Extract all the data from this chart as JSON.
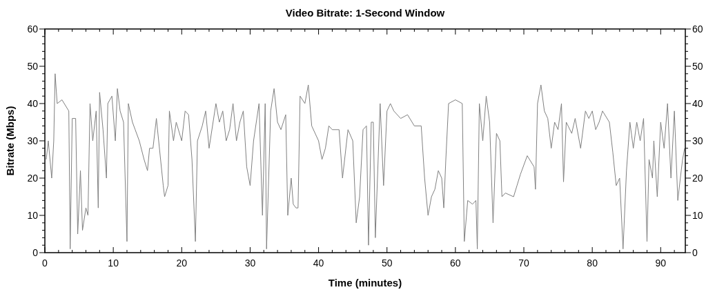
{
  "chart_data": {
    "type": "line",
    "title": "Video Bitrate: 1-Second Window",
    "xlabel": "Time (minutes)",
    "ylabel": "Bitrate (Mbps)",
    "xlim": [
      0,
      93.6
    ],
    "ylim": [
      0,
      60
    ],
    "y2lim": [
      0,
      60
    ],
    "grid": false,
    "marker": "none",
    "line_style": "solid",
    "xticks": [
      0,
      {
        "value": 2,
        "label": null
      },
      {
        "value": 4,
        "label": null
      },
      {
        "value": 6,
        "label": null
      },
      {
        "value": 8,
        "label": null
      },
      10,
      {
        "value": 12,
        "label": null
      },
      {
        "value": 14,
        "label": null
      },
      {
        "value": 16,
        "label": null
      },
      {
        "value": 18,
        "label": null
      },
      20,
      {
        "value": 22,
        "label": null
      },
      {
        "value": 24,
        "label": null
      },
      {
        "value": 26,
        "label": null
      },
      {
        "value": 28,
        "label": null
      },
      30,
      {
        "value": 32,
        "label": null
      },
      {
        "value": 34,
        "label": null
      },
      {
        "value": 36,
        "label": null
      },
      {
        "value": 38,
        "label": null
      },
      40,
      {
        "value": 42,
        "label": null
      },
      {
        "value": 44,
        "label": null
      },
      {
        "value": 46,
        "label": null
      },
      {
        "value": 48,
        "label": null
      },
      50,
      {
        "value": 52,
        "label": null
      },
      {
        "value": 54,
        "label": null
      },
      {
        "value": 56,
        "label": null
      },
      {
        "value": 58,
        "label": null
      },
      60,
      {
        "value": 62,
        "label": null
      },
      {
        "value": 64,
        "label": null
      },
      {
        "value": 66,
        "label": null
      },
      {
        "value": 68,
        "label": null
      },
      70,
      {
        "value": 72,
        "label": null
      },
      {
        "value": 74,
        "label": null
      },
      {
        "value": 76,
        "label": null
      },
      {
        "value": 78,
        "label": null
      },
      80,
      {
        "value": 82,
        "label": null
      },
      {
        "value": 84,
        "label": null
      },
      {
        "value": 86,
        "label": null
      },
      {
        "value": 88,
        "label": null
      },
      90,
      {
        "value": 92,
        "label": null
      }
    ],
    "yticks": [
      0,
      {
        "value": 2,
        "label": null
      },
      {
        "value": 4,
        "label": null
      },
      {
        "value": 6,
        "label": null
      },
      {
        "value": 8,
        "label": null
      },
      10,
      {
        "value": 12,
        "label": null
      },
      {
        "value": 14,
        "label": null
      },
      {
        "value": 16,
        "label": null
      },
      {
        "value": 18,
        "label": null
      },
      20,
      {
        "value": 22,
        "label": null
      },
      {
        "value": 24,
        "label": null
      },
      {
        "value": 26,
        "label": null
      },
      {
        "value": 28,
        "label": null
      },
      30,
      {
        "value": 32,
        "label": null
      },
      {
        "value": 34,
        "label": null
      },
      {
        "value": 36,
        "label": null
      },
      {
        "value": 38,
        "label": null
      },
      40,
      {
        "value": 42,
        "label": null
      },
      {
        "value": 44,
        "label": null
      },
      {
        "value": 46,
        "label": null
      },
      {
        "value": 48,
        "label": null
      },
      50,
      {
        "value": 52,
        "label": null
      },
      {
        "value": 54,
        "label": null
      },
      {
        "value": 56,
        "label": null
      },
      {
        "value": 58,
        "label": null
      },
      60
    ],
    "y2ticks": [
      0,
      {
        "value": 2,
        "label": null
      },
      {
        "value": 4,
        "label": null
      },
      {
        "value": 6,
        "label": null
      },
      {
        "value": 8,
        "label": null
      },
      10,
      {
        "value": 12,
        "label": null
      },
      {
        "value": 14,
        "label": null
      },
      {
        "value": 16,
        "label": null
      },
      {
        "value": 18,
        "label": null
      },
      20,
      {
        "value": 22,
        "label": null
      },
      {
        "value": 24,
        "label": null
      },
      {
        "value": 26,
        "label": null
      },
      {
        "value": 28,
        "label": null
      },
      30,
      {
        "value": 32,
        "label": null
      },
      {
        "value": 34,
        "label": null
      },
      {
        "value": 36,
        "label": null
      },
      {
        "value": 38,
        "label": null
      },
      40,
      {
        "value": 42,
        "label": null
      },
      {
        "value": 44,
        "label": null
      },
      {
        "value": 46,
        "label": null
      },
      {
        "value": 48,
        "label": null
      },
      50,
      {
        "value": 52,
        "label": null
      },
      {
        "value": 54,
        "label": null
      },
      {
        "value": 56,
        "label": null
      },
      {
        "value": 58,
        "label": null
      },
      60
    ],
    "series": [
      {
        "color": "#808080",
        "x": [
          0.2,
          0.5,
          1,
          1.3,
          1.5,
          1.8,
          2.5,
          3.5,
          3.7,
          4,
          4.5,
          4.8,
          5.2,
          5.5,
          6,
          6.3,
          6.6,
          7,
          7.5,
          7.8,
          8,
          8.5,
          9,
          9.2,
          9.8,
          10.3,
          10.6,
          11,
          11.5,
          12,
          12.2,
          12.8,
          13.2,
          13.8,
          14.5,
          15,
          15.3,
          15.8,
          16.3,
          17.3,
          17.5,
          18,
          18.2,
          18.8,
          19.2,
          20,
          20.5,
          21,
          21.5,
          22,
          22.3,
          23,
          23.5,
          24,
          25,
          25.5,
          26,
          26.5,
          27,
          27.5,
          28,
          28.5,
          29,
          29.5,
          30,
          30.5,
          31.3,
          31.8,
          32.2,
          32.4,
          33,
          33.5,
          34,
          34.5,
          35.2,
          35.5,
          36,
          36.3,
          36.7,
          37,
          37.3,
          38,
          38.5,
          39,
          40,
          40.5,
          41,
          41.5,
          42,
          43,
          43.5,
          44.3,
          45,
          45.5,
          46,
          46.5,
          47,
          47.3,
          47.7,
          48,
          48.3,
          49,
          49.5,
          50,
          50.5,
          51,
          52,
          53,
          54,
          55,
          55.5,
          56,
          56.5,
          57,
          57.5,
          58,
          58.3,
          58.6,
          59,
          60,
          61,
          61.3,
          61.8,
          62.5,
          63,
          63.2,
          63.5,
          64,
          64.5,
          65,
          65.5,
          66,
          66.5,
          66.8,
          67.3,
          68.5,
          69,
          69.5,
          70.5,
          71.5,
          71.7,
          72,
          72.5,
          73,
          73.5,
          74,
          74.5,
          75,
          75.5,
          75.8,
          76.2,
          77,
          77.5,
          78.3,
          79,
          79.5,
          80,
          80.5,
          81,
          81.5,
          82.5,
          83,
          83.5,
          84,
          84.5,
          85,
          85.5,
          86,
          86.5,
          87,
          87.5,
          88,
          88.3,
          88.8,
          89,
          89.5,
          90,
          90.5,
          91,
          91.5,
          92,
          92.5,
          93,
          93.2,
          93.5
        ],
        "values": [
          25,
          30,
          20,
          30,
          48,
          40,
          41,
          38,
          1,
          36,
          36,
          5,
          22,
          6,
          12,
          10,
          40,
          30,
          38,
          12,
          43,
          33,
          20,
          40,
          42,
          30,
          44,
          38,
          35,
          3,
          40,
          35,
          33,
          30,
          25,
          22,
          28,
          28,
          36,
          18,
          15,
          18,
          38,
          30,
          35,
          30,
          38,
          37,
          25,
          3,
          30,
          34,
          38,
          28,
          40,
          35,
          38,
          30,
          33,
          40,
          30,
          35,
          38,
          23,
          18,
          30,
          40,
          10,
          40,
          1,
          38,
          44,
          35,
          33,
          37,
          10,
          20,
          13,
          12,
          12,
          42,
          40,
          45,
          34,
          30,
          25,
          28,
          34,
          33,
          33,
          20,
          33,
          30,
          8,
          15,
          33,
          34,
          2,
          35,
          35,
          4,
          40,
          18,
          38,
          40,
          38,
          36,
          37,
          34,
          34,
          20,
          10,
          15,
          17,
          22,
          20,
          12,
          25,
          40,
          41,
          40,
          3,
          14,
          13,
          14,
          1,
          40,
          30,
          42,
          35,
          8,
          32,
          30,
          15,
          16,
          15,
          18,
          21,
          26,
          23,
          17,
          40,
          45,
          38,
          36,
          28,
          35,
          33,
          40,
          19,
          35,
          32,
          36,
          28,
          38,
          36,
          38,
          33,
          35,
          38,
          35,
          27,
          18,
          20,
          1,
          22,
          35,
          28,
          35,
          30,
          36,
          3,
          25,
          20,
          30,
          15,
          35,
          28,
          40,
          20,
          38,
          14,
          22,
          25,
          28
        ]
      }
    ]
  }
}
